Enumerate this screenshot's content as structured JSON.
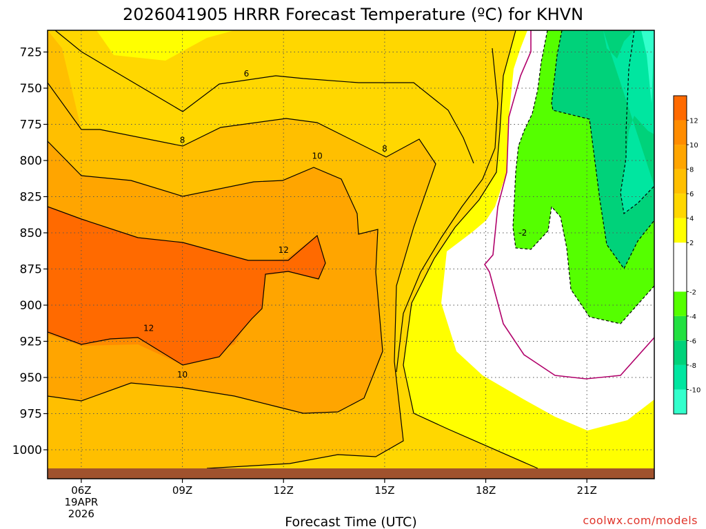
{
  "chart_data": {
    "type": "heatmap",
    "title": "2026041905 HRRR Forecast Temperature (ºC) for KHVN",
    "xlabel": "Forecast Time (UTC)",
    "x_ticks": [
      "06Z",
      "09Z",
      "12Z",
      "15Z",
      "18Z",
      "21Z"
    ],
    "x_date_lines": [
      "19APR",
      "2026"
    ],
    "y_ticks": [
      "725",
      "750",
      "775",
      "800",
      "825",
      "850",
      "875",
      "900",
      "925",
      "950",
      "975",
      "1000"
    ],
    "y_values": [
      725,
      750,
      775,
      800,
      825,
      850,
      875,
      900,
      925,
      950,
      975,
      1000
    ],
    "ylim": [
      1020,
      710
    ],
    "grid": true,
    "colorbar": {
      "bands": [
        {
          "lo": -12,
          "hi": -10,
          "color": "#33ffcc"
        },
        {
          "lo": -10,
          "hi": -8,
          "color": "#00e6a0"
        },
        {
          "lo": -8,
          "hi": -6,
          "color": "#00d27a"
        },
        {
          "lo": -6,
          "hi": -4,
          "color": "#22e040"
        },
        {
          "lo": -4,
          "hi": -2,
          "color": "#55ff00"
        },
        {
          "lo": -2,
          "hi": 2,
          "color": "#ffffff"
        },
        {
          "lo": 2,
          "hi": 4,
          "color": "#ffff00"
        },
        {
          "lo": 4,
          "hi": 6,
          "color": "#ffd700"
        },
        {
          "lo": 6,
          "hi": 8,
          "color": "#ffbf00"
        },
        {
          "lo": 8,
          "hi": 10,
          "color": "#ffa500"
        },
        {
          "lo": 10,
          "hi": 12,
          "color": "#ff8c00"
        },
        {
          "lo": 12,
          "hi": 14,
          "color": "#ff6a00"
        }
      ],
      "tick_labels": [
        "12",
        "10",
        "8",
        "6",
        "4",
        "2",
        "-2",
        "-4",
        "-6",
        "-8",
        "-10"
      ]
    },
    "contour_labels": [
      {
        "text": "6",
        "hour": 10.9,
        "p": 740
      },
      {
        "text": "8",
        "hour": 9.0,
        "p": 786
      },
      {
        "text": "8",
        "hour": 15.0,
        "p": 792
      },
      {
        "text": "10",
        "hour": 13.0,
        "p": 797
      },
      {
        "text": "12",
        "hour": 12.0,
        "p": 862
      },
      {
        "text": "12",
        "hour": 8.0,
        "p": 916
      },
      {
        "text": "10",
        "hour": 9.0,
        "p": 948
      },
      {
        "text": "-2",
        "hour": 19.1,
        "p": 850
      }
    ],
    "surface_color": "#a0522d"
  },
  "watermark": "coolwx.com/models"
}
